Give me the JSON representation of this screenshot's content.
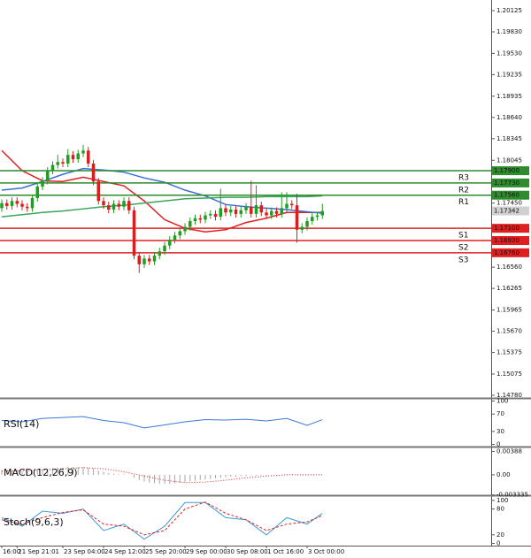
{
  "chart_data": [
    {
      "type": "candlestick",
      "xlim": [
        -0.35,
        96.17
      ],
      "ylim": [
        1.14743,
        1.20272
      ],
      "yticks": [
        1.20125,
        {
          "value": 1.1983,
          "label": "1.19830"
        },
        {
          "value": 1.1953,
          "label": "1.19530"
        },
        1.19235,
        1.18935,
        {
          "value": 1.1864,
          "label": "1.18640"
        },
        1.18345,
        1.18045,
        {
          "value": 1.1745,
          "label": "1.17450"
        },
        {
          "value": 1.1656,
          "label": "1.16560"
        },
        1.16265,
        1.15965,
        {
          "value": 1.1567,
          "label": "1.15670"
        },
        1.15375,
        1.15075,
        {
          "value": 1.1478,
          "label": "1.14780"
        }
      ],
      "categories": [
        "16:00",
        null,
        null,
        "21 Sep 21:01",
        null,
        null,
        null,
        null,
        null,
        null,
        null,
        null,
        "23 Sep 04:00",
        null,
        null,
        null,
        null,
        null,
        null,
        null,
        "24 Sep 12:00",
        null,
        null,
        null,
        null,
        null,
        null,
        null,
        "25 Sep 20:00",
        null,
        null,
        null,
        null,
        null,
        null,
        null,
        "29 Sep 00:00",
        null,
        null,
        null,
        null,
        null,
        null,
        null,
        "30 Sep 08:00",
        null,
        null,
        null,
        null,
        null,
        null,
        null,
        "1 Oct 16:00",
        null,
        null,
        null,
        null,
        null,
        null,
        null,
        "3 Oct 00:00",
        null,
        null,
        null
      ],
      "open": [
        1.1738,
        1.1745,
        1.1741,
        1.1748,
        1.1744,
        1.174,
        1.1738,
        1.1752,
        1.1768,
        1.1776,
        1.179,
        1.1798,
        1.1802,
        1.18,
        1.1812,
        1.1806,
        1.1814,
        1.1818,
        1.18,
        1.1775,
        1.1748,
        1.1742,
        1.1736,
        1.1744,
        1.174,
        1.1748,
        1.1735,
        1.1672,
        1.166,
        1.1668,
        1.1664,
        1.1672,
        1.1678,
        1.1686,
        1.1694,
        1.17,
        1.1706,
        1.1712,
        1.172,
        1.1724,
        1.1722,
        1.1728,
        1.173,
        1.1726,
        1.1738,
        1.1732,
        1.1736,
        1.173,
        1.1735,
        1.174,
        1.173,
        1.1742,
        1.1732,
        1.1728,
        1.1734,
        1.173,
        1.1738,
        1.1744,
        1.1742,
        1.1708,
        1.1712,
        1.172,
        1.1726,
        1.1728
      ],
      "high": [
        1.175,
        1.175,
        1.1753,
        1.1753,
        1.1749,
        1.1745,
        1.1757,
        1.1773,
        1.1781,
        1.1795,
        1.1803,
        1.1812,
        1.1807,
        1.182,
        1.1817,
        1.1819,
        1.1826,
        1.1823,
        1.1805,
        1.178,
        1.1753,
        1.1747,
        1.1749,
        1.1749,
        1.1753,
        1.1753,
        1.174,
        1.1677,
        1.1673,
        1.1673,
        1.1677,
        1.1683,
        1.1691,
        1.1699,
        1.1705,
        1.1711,
        1.1717,
        1.1725,
        1.1729,
        1.1729,
        1.1733,
        1.1735,
        1.1735,
        1.1765,
        1.1743,
        1.1741,
        1.1741,
        1.174,
        1.1745,
        1.1776,
        1.177,
        1.1747,
        1.1737,
        1.1739,
        1.1739,
        1.176,
        1.176,
        1.1749,
        1.1758,
        1.1717,
        1.1725,
        1.1731,
        1.1733,
        1.1744
      ],
      "low": [
        1.1733,
        1.1736,
        1.1736,
        1.1739,
        1.1735,
        1.1733,
        1.1733,
        1.1747,
        1.1763,
        1.1771,
        1.1785,
        1.1793,
        1.1795,
        1.1795,
        1.1801,
        1.1801,
        1.1809,
        1.1795,
        1.177,
        1.1743,
        1.1737,
        1.1731,
        1.1731,
        1.1735,
        1.1735,
        1.173,
        1.1667,
        1.1648,
        1.1655,
        1.1659,
        1.1659,
        1.1667,
        1.1673,
        1.1681,
        1.1689,
        1.1695,
        1.1701,
        1.1707,
        1.1715,
        1.1717,
        1.1717,
        1.1723,
        1.1721,
        1.1721,
        1.1727,
        1.1727,
        1.1725,
        1.1725,
        1.173,
        1.1725,
        1.1725,
        1.1727,
        1.1723,
        1.1723,
        1.1725,
        1.1725,
        1.1733,
        1.1737,
        1.169,
        1.1703,
        1.1707,
        1.1715,
        1.1721,
        1.1723
      ],
      "close": [
        1.1745,
        1.1741,
        1.1748,
        1.1744,
        1.174,
        1.1738,
        1.1752,
        1.1768,
        1.1776,
        1.179,
        1.1798,
        1.1802,
        1.18,
        1.1812,
        1.1806,
        1.1814,
        1.1818,
        1.18,
        1.1775,
        1.1748,
        1.1742,
        1.1736,
        1.1744,
        1.174,
        1.1748,
        1.1735,
        1.1672,
        1.166,
        1.1668,
        1.1664,
        1.1672,
        1.1678,
        1.1686,
        1.1694,
        1.17,
        1.1706,
        1.1712,
        1.172,
        1.1724,
        1.1722,
        1.1728,
        1.173,
        1.1726,
        1.1738,
        1.1732,
        1.1736,
        1.173,
        1.1735,
        1.174,
        1.173,
        1.1742,
        1.1732,
        1.1728,
        1.1734,
        1.173,
        1.1738,
        1.1744,
        1.1742,
        1.1708,
        1.1712,
        1.172,
        1.1726,
        1.1728,
        1.1734
      ],
      "up_color": "#1f9e1f",
      "down_color": "#d62020",
      "overlays": [
        {
          "color": "#e02020",
          "x": [
            0,
            4,
            8,
            12,
            16,
            20,
            24,
            28,
            32,
            36,
            40,
            44,
            48,
            52,
            56,
            60,
            63
          ],
          "values": [
            1.1818,
            1.179,
            1.1776,
            1.1775,
            1.1781,
            1.1775,
            1.1769,
            1.1748,
            1.1722,
            1.171,
            1.1705,
            1.1708,
            1.1718,
            1.1724,
            1.1732,
            1.1732,
            1.1732
          ]
        },
        {
          "color": "#3a6fd8",
          "x": [
            0,
            4,
            8,
            12,
            16,
            20,
            24,
            28,
            32,
            36,
            40,
            44,
            48,
            52,
            56,
            60,
            63
          ],
          "values": [
            1.1763,
            1.1766,
            1.1775,
            1.1785,
            1.1793,
            1.1791,
            1.1788,
            1.178,
            1.1774,
            1.1763,
            1.1755,
            1.1743,
            1.174,
            1.1738,
            1.1736,
            1.1733,
            1.1731
          ]
        },
        {
          "color": "#3aa55a",
          "x": [
            0,
            4,
            8,
            12,
            16,
            20,
            24,
            28,
            32,
            36,
            40,
            44,
            48,
            52,
            56,
            60,
            63
          ],
          "values": [
            1.1726,
            1.1729,
            1.1732,
            1.1734,
            1.1737,
            1.174,
            1.1742,
            1.1745,
            1.1748,
            1.1751,
            1.1752,
            1.1753,
            1.1753,
            1.1754,
            1.1754,
            1.1754,
            1.1755
          ]
        }
      ],
      "levels": [
        {
          "name": "R3",
          "value": 1.179,
          "label": "1.17900",
          "color": "#2e8b2e"
        },
        {
          "name": "R2",
          "value": 1.1773,
          "label": "1.17730",
          "color": "#2e8b2e"
        },
        {
          "name": "R1",
          "value": 1.1756,
          "label": "1.17560",
          "color": "#2e8b2e"
        },
        {
          "name": "S1",
          "value": 1.171,
          "label": "1.17100",
          "color": "#e02020"
        },
        {
          "name": "S2",
          "value": 1.1693,
          "label": "1.16930",
          "color": "#e02020"
        },
        {
          "name": "S3",
          "value": 1.1676,
          "label": "1.16760",
          "color": "#e02020"
        }
      ],
      "last_price": 1.17342,
      "last_price_color": "#d0d0d0"
    },
    {
      "type": "line",
      "title": "RSI(14)",
      "xlim": [
        -0.35,
        96.17
      ],
      "ylim": [
        -5,
        105
      ],
      "yticks": [
        100,
        70,
        30,
        0
      ],
      "x": [
        0,
        4,
        8,
        12,
        16,
        20,
        24,
        28,
        32,
        36,
        40,
        44,
        48,
        52,
        56,
        60,
        63
      ],
      "series": [
        {
          "color": "#3c78d8",
          "dash": "none",
          "values": [
            55,
            52,
            60,
            62,
            64,
            55,
            50,
            38,
            45,
            52,
            57,
            56,
            58,
            54,
            60,
            44,
            57
          ]
        }
      ]
    },
    {
      "type": "macd",
      "title": "MACD(12,26,9)",
      "xlim": [
        -0.35,
        96.17
      ],
      "ylim": [
        -0.00338,
        0.00453
      ],
      "yticks": [
        0.00388,
        {
          "value": 0,
          "label": "0.00"
        },
        -0.003335
      ],
      "histogram": {
        "color": "#a8a8a8",
        "values": [
          0.0008,
          0.0008,
          0.0007,
          0.0007,
          0.0006,
          0.0006,
          0.0007,
          0.0008,
          0.0009,
          0.001,
          0.0011,
          0.0012,
          0.0012,
          0.0013,
          0.0013,
          0.0013,
          0.0013,
          0.0012,
          0.001,
          0.0007,
          0.0005,
          0.0003,
          0.0002,
          0.0001,
          0.0001,
          0,
          -0.0005,
          -0.0009,
          -0.0011,
          -0.0013,
          -0.0014,
          -0.0015,
          -0.0015,
          -0.0015,
          -0.0014,
          -0.0013,
          -0.0012,
          -0.0011,
          -0.001,
          -0.0009,
          -0.0008,
          -0.0007,
          -0.0006,
          -0.0005,
          -0.0004,
          -0.0003,
          -0.0003,
          -0.0002,
          -0.0002,
          -0.0001,
          -0.0001,
          -0.0001,
          -0.0001,
          0,
          0,
          0,
          0.0001,
          0.0001,
          -0.0001,
          -0.0001,
          -0.0001,
          -0.0001,
          0,
          0
        ]
      },
      "x": [
        0,
        4,
        8,
        12,
        16,
        20,
        24,
        28,
        32,
        36,
        40,
        44,
        48,
        52,
        56,
        60,
        63
      ],
      "series": [
        {
          "color": "#e02020",
          "dash": "1,2",
          "values": [
            0.0006,
            0.0007,
            0.0008,
            0.001,
            0.0012,
            0.001,
            0.0005,
            -0.0002,
            -0.0009,
            -0.0013,
            -0.0012,
            -0.0009,
            -0.0005,
            -0.0002,
            0,
            0,
            0
          ]
        }
      ]
    },
    {
      "type": "line",
      "title": "Stoch(9,6,3)",
      "xlim": [
        -0.35,
        96.17
      ],
      "ylim": [
        -5,
        110
      ],
      "yticks": [
        100,
        80,
        20,
        0
      ],
      "x": [
        0,
        4,
        8,
        12,
        16,
        20,
        24,
        28,
        32,
        36,
        40,
        44,
        48,
        52,
        56,
        60,
        63
      ],
      "series": [
        {
          "color": "#3c9bd8",
          "dash": "none",
          "values": [
            60,
            40,
            75,
            70,
            80,
            30,
            45,
            10,
            40,
            95,
            95,
            60,
            55,
            20,
            60,
            45,
            70
          ]
        },
        {
          "color": "#e02020",
          "dash": "3,2",
          "values": [
            55,
            45,
            60,
            72,
            78,
            45,
            40,
            20,
            30,
            80,
            96,
            70,
            55,
            30,
            45,
            50,
            65
          ]
        }
      ]
    }
  ]
}
